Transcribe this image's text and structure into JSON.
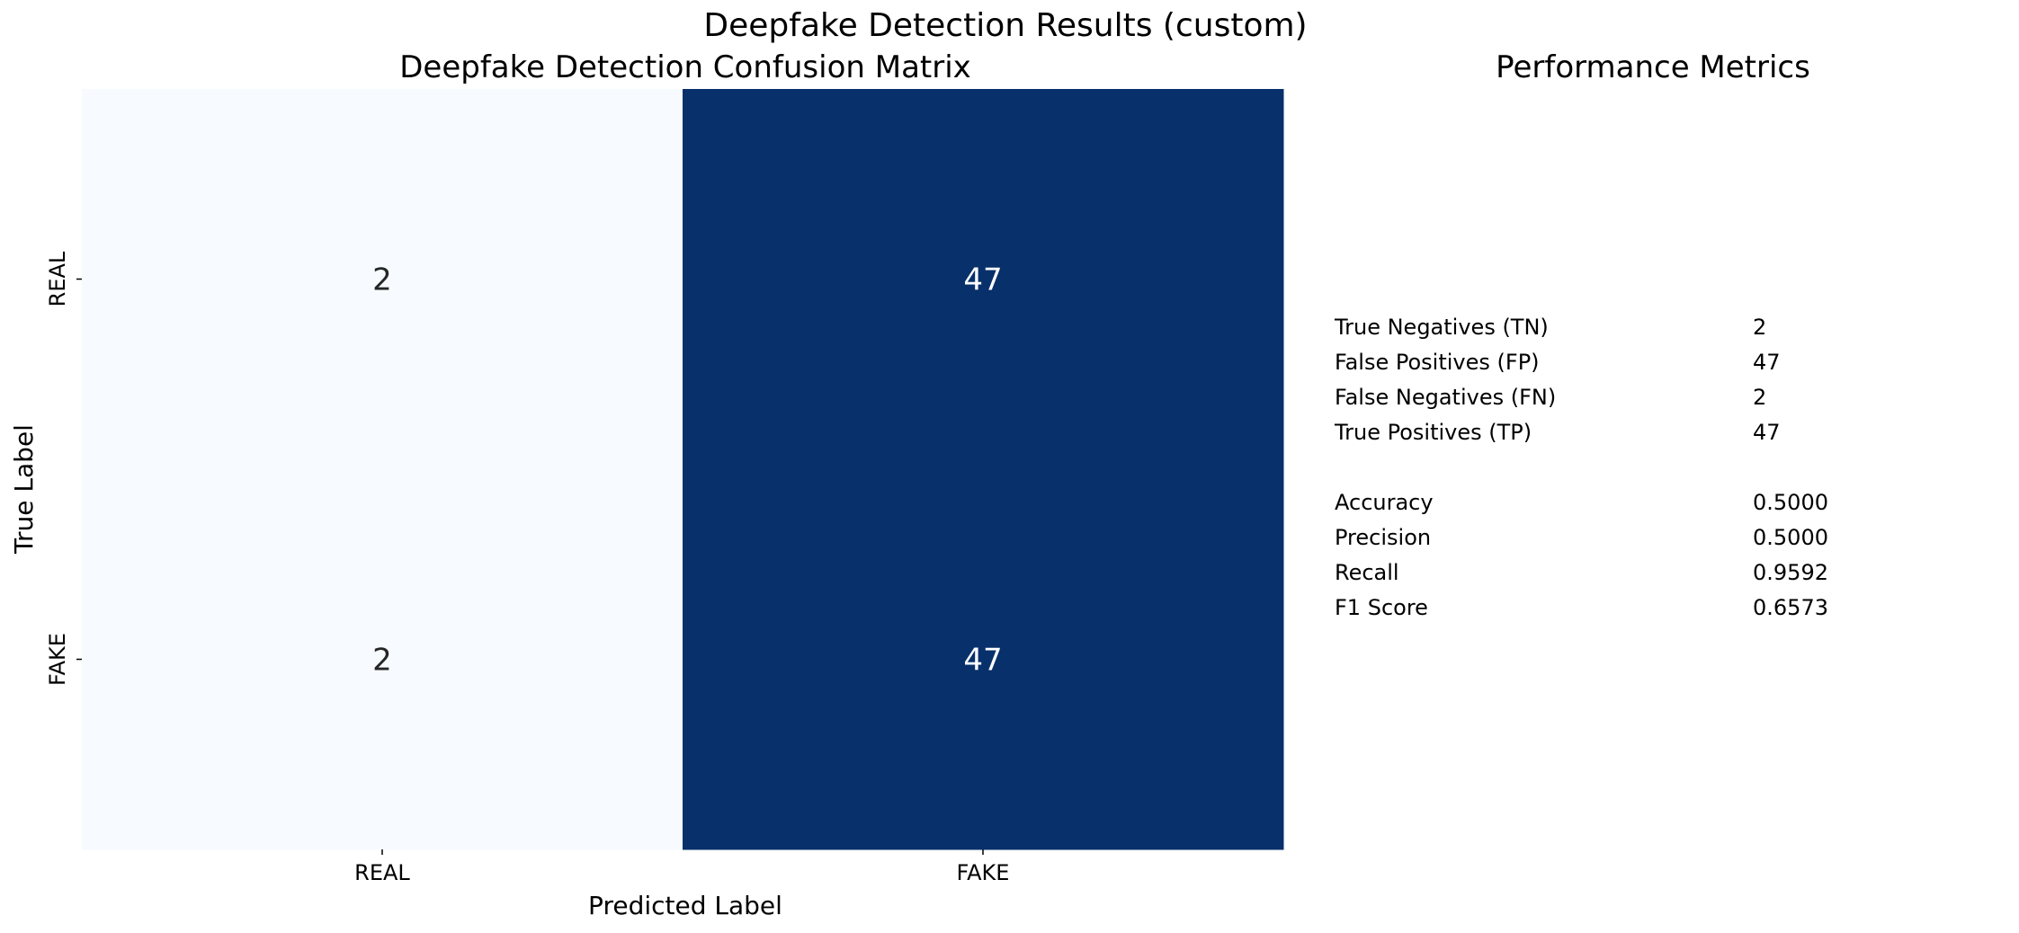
{
  "figure": {
    "suptitle": "Deepfake Detection Results (custom)"
  },
  "chart_data": [
    {
      "type": "heatmap",
      "title": "Deepfake Detection Confusion Matrix",
      "xlabel": "Predicted Label",
      "ylabel": "True Label",
      "x_categories": [
        "REAL",
        "FAKE"
      ],
      "y_categories": [
        "REAL",
        "FAKE"
      ],
      "values": [
        [
          2,
          47
        ],
        [
          2,
          47
        ]
      ],
      "colormap": "Blues",
      "color_low": "#f7fbff",
      "color_high": "#08306b",
      "annotation_color_on_low": "#262626",
      "annotation_color_on_high": "#ffffff",
      "colorbar": false
    },
    {
      "type": "table",
      "title": "Performance Metrics",
      "rows": [
        {
          "label": "True Negatives (TN)",
          "value": "2"
        },
        {
          "label": "False Positives (FP)",
          "value": "47"
        },
        {
          "label": "False Negatives (FN)",
          "value": "2"
        },
        {
          "label": "True Positives (TP)",
          "value": "47"
        },
        {
          "label": "",
          "value": ""
        },
        {
          "label": "Accuracy",
          "value": "0.5000"
        },
        {
          "label": "Precision",
          "value": "0.5000"
        },
        {
          "label": "Recall",
          "value": "0.9592"
        },
        {
          "label": "F1 Score",
          "value": "0.6573"
        }
      ]
    }
  ]
}
